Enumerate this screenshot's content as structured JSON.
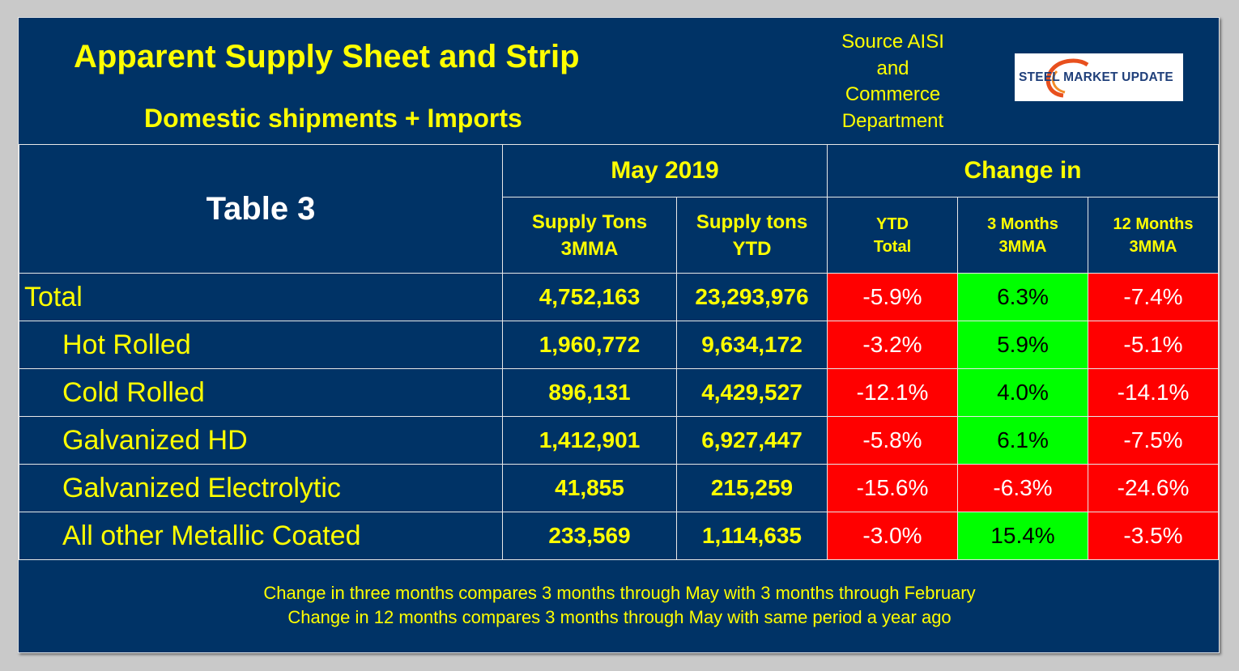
{
  "header": {
    "title": "Apparent Supply Sheet and Strip",
    "subtitle": "Domestic shipments + Imports",
    "source_lines": [
      "Source AISI",
      "and",
      "Commerce",
      "Department"
    ],
    "logo_text": "STEEL MARKET UPDATE"
  },
  "table": {
    "label": "Table 3",
    "period": "May 2019",
    "change_header": "Change in",
    "columns": [
      {
        "line1": "Supply Tons",
        "line2": "3MMA"
      },
      {
        "line1": "Supply tons",
        "line2": "YTD"
      },
      {
        "line1": "YTD",
        "line2": "Total"
      },
      {
        "line1": "3 Months",
        "line2": "3MMA"
      },
      {
        "line1": "12 Months",
        "line2": "3MMA"
      }
    ],
    "rows": [
      {
        "name": "Total",
        "tons_3mma": "4,752,163",
        "tons_ytd": "23,293,976",
        "ytd_total": "-5.9%",
        "m3": "6.3%",
        "m12": "-7.4%"
      },
      {
        "name": "Hot Rolled",
        "tons_3mma": "1,960,772",
        "tons_ytd": "9,634,172",
        "ytd_total": "-3.2%",
        "m3": "5.9%",
        "m12": "-5.1%"
      },
      {
        "name": "Cold Rolled",
        "tons_3mma": "896,131",
        "tons_ytd": "4,429,527",
        "ytd_total": "-12.1%",
        "m3": "4.0%",
        "m12": "-14.1%"
      },
      {
        "name": "Galvanized HD",
        "tons_3mma": "1,412,901",
        "tons_ytd": "6,927,447",
        "ytd_total": "-5.8%",
        "m3": "6.1%",
        "m12": "-7.5%"
      },
      {
        "name": "Galvanized Electrolytic",
        "tons_3mma": "41,855",
        "tons_ytd": "215,259",
        "ytd_total": "-15.6%",
        "m3": "-6.3%",
        "m12": "-24.6%"
      },
      {
        "name": "All other Metallic Coated",
        "tons_3mma": "233,569",
        "tons_ytd": "1,114,635",
        "ytd_total": "-3.0%",
        "m3": "15.4%",
        "m12": "-3.5%"
      }
    ]
  },
  "notes": [
    "Change in three months compares 3 months through May with 3 months through February",
    "Change in 12 months compares 3 months through May with same period a year ago"
  ],
  "colors": {
    "background": "#003366",
    "text_highlight": "#ffff00",
    "negative": "#ff0000",
    "positive": "#00ff00"
  }
}
